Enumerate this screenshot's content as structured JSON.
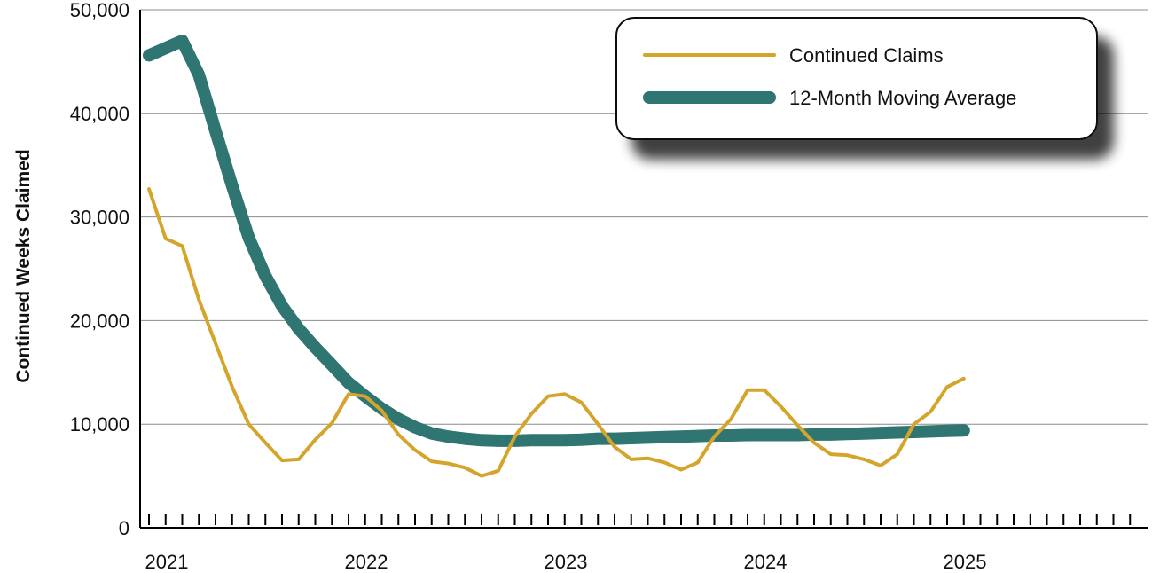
{
  "chart_data": {
    "type": "line",
    "ylabel": "Continued Weeks Claimed",
    "xlabel": "",
    "ylim": [
      0,
      50000
    ],
    "yticks": [
      0,
      10000,
      20000,
      30000,
      40000,
      50000
    ],
    "ytick_labels": [
      "0",
      "10,000",
      "20,000",
      "30,000",
      "40,000",
      "50,000"
    ],
    "x_tick_labels": [
      "2021",
      "2022",
      "2023",
      "2024",
      "2025"
    ],
    "grid": true,
    "legend_position": "top-right",
    "colors": {
      "continued_claims": "#D4A42B",
      "moving_average": "#2F7571"
    },
    "series": [
      {
        "name": "Continued Claims",
        "values": [
          32700,
          27900,
          27200,
          22000,
          17800,
          13600,
          10000,
          8200,
          6500,
          6600,
          8500,
          10100,
          12900,
          12700,
          11300,
          9000,
          7500,
          6400,
          6200,
          5800,
          5000,
          5500,
          8800,
          11000,
          12700,
          12900,
          12100,
          10000,
          7800,
          6600,
          6700,
          6300,
          5600,
          6300,
          8800,
          10500,
          13300,
          13300,
          11700,
          9900,
          8200,
          7100,
          7000,
          6600,
          6000,
          7100,
          10000,
          11200,
          13600,
          14400
        ]
      },
      {
        "name": "12-Month Moving Average",
        "values": [
          45600,
          46300,
          47000,
          43700,
          38300,
          33000,
          28000,
          24300,
          21400,
          19200,
          17400,
          15700,
          14000,
          12700,
          11500,
          10500,
          9700,
          9100,
          8800,
          8600,
          8450,
          8400,
          8400,
          8450,
          8450,
          8450,
          8500,
          8600,
          8600,
          8650,
          8700,
          8750,
          8800,
          8850,
          8900,
          8900,
          8950,
          8950,
          8950,
          8950,
          9000,
          9000,
          9050,
          9100,
          9150,
          9200,
          9250,
          9300,
          9350,
          9400
        ]
      }
    ]
  }
}
